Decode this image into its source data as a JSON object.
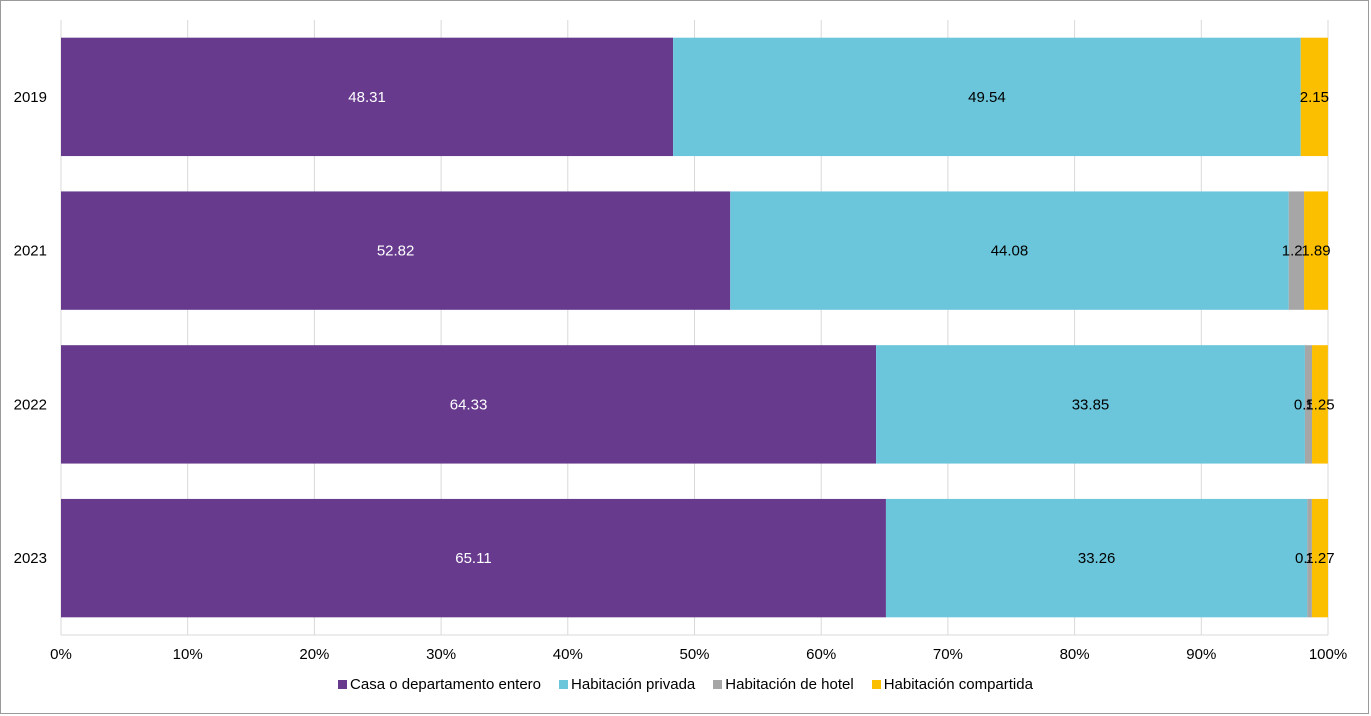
{
  "chart_data": {
    "type": "bar",
    "orientation": "horizontal",
    "stacked": "percent",
    "categories": [
      "2019",
      "2021",
      "2022",
      "2023"
    ],
    "series": [
      {
        "name": "Casa o departamento entero",
        "color": "#673a8e",
        "label_color": "#ffffff",
        "values": [
          48.31,
          52.82,
          64.33,
          65.11
        ],
        "labels": [
          "48.31",
          "52.82",
          "64.33",
          "65.11"
        ]
      },
      {
        "name": "Habitación privada",
        "color": "#6bc6db",
        "label_color": "#000000",
        "values": [
          49.54,
          44.08,
          33.85,
          33.26
        ],
        "labels": [
          "49.54",
          "44.08",
          "33.85",
          "33.26"
        ]
      },
      {
        "name": "Habitación de hotel",
        "color": "#a6a6a6",
        "label_color": "#000000",
        "values": [
          0,
          1.21,
          0.56,
          0.36
        ],
        "labels": [
          "",
          "1.21",
          "0.56",
          "0.36"
        ]
      },
      {
        "name": "Habitación compartida",
        "color": "#fbbf00",
        "label_color": "#000000",
        "values": [
          2.15,
          1.89,
          1.25,
          1.27
        ],
        "labels": [
          "2.15",
          "1.89",
          "1.25",
          "1.27"
        ]
      }
    ],
    "xlim": [
      0,
      100
    ],
    "xticks": [
      "0%",
      "10%",
      "20%",
      "30%",
      "40%",
      "50%",
      "60%",
      "70%",
      "80%",
      "90%",
      "100%"
    ],
    "grid": "vertical",
    "legend": "bottom-center",
    "title": "",
    "xlabel": "",
    "ylabel": ""
  }
}
